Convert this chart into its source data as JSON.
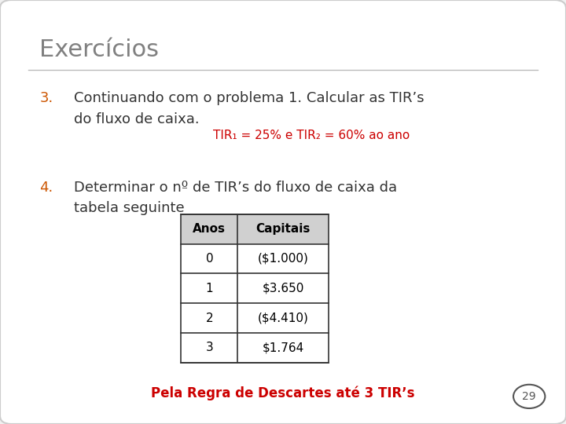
{
  "title": "Exercícios",
  "title_color": "#808080",
  "background_color": "#f0f0f0",
  "item3_number": "3.",
  "item3_number_color": "#cc5500",
  "item3_line1": "Continuando com o problema 1. Calcular as TIR’s",
  "item3_line2": "do fluxo de caixa.",
  "item3_text_color": "#333333",
  "tir_formula": "TIR₁ = 25% e TIR₂ = 60% ao ano",
  "tir_formula_color": "#cc0000",
  "item4_number": "4.",
  "item4_number_color": "#cc5500",
  "item4_line1": "Determinar o nº de TIR’s do fluxo de caixa da",
  "item4_line2": "tabela seguinte",
  "item4_text_color": "#333333",
  "table_headers": [
    "Anos",
    "Capitais"
  ],
  "table_data": [
    [
      "0",
      "($1.000)"
    ],
    [
      "1",
      "$3.650"
    ],
    [
      "2",
      "($4.410)"
    ],
    [
      "3",
      "$1.764"
    ]
  ],
  "table_header_bg": "#d0d0d0",
  "table_border_color": "#333333",
  "footer_text": "Pela Regra de Descartes até 3 TIR’s",
  "footer_color": "#cc0000",
  "page_number": "29",
  "page_number_color": "#555555",
  "line_color": "#bbbbbb"
}
